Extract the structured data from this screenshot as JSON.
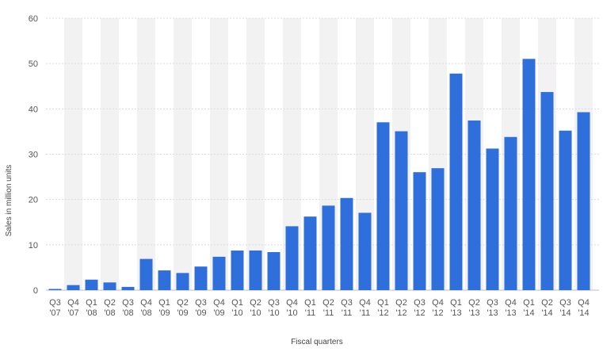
{
  "chart_data": {
    "type": "bar",
    "title": "",
    "xlabel": "Fiscal quarters",
    "ylabel": "Sales in million units",
    "ylim": [
      0,
      60
    ],
    "yticks": [
      0,
      10,
      20,
      30,
      40,
      50,
      60
    ],
    "grid": true,
    "legend": "none",
    "bar_color": "#2f6fdc",
    "band_color": "#f2f2f2",
    "grid_color": "#dcdcdc",
    "categories": [
      {
        "q": "Q3",
        "y": "'07"
      },
      {
        "q": "Q4",
        "y": "'07"
      },
      {
        "q": "Q1",
        "y": "'08"
      },
      {
        "q": "Q2",
        "y": "'08"
      },
      {
        "q": "Q3",
        "y": "'08"
      },
      {
        "q": "Q4",
        "y": "'08"
      },
      {
        "q": "Q1",
        "y": "'09"
      },
      {
        "q": "Q2",
        "y": "'09"
      },
      {
        "q": "Q3",
        "y": "'09"
      },
      {
        "q": "Q4",
        "y": "'09"
      },
      {
        "q": "Q1",
        "y": "'10"
      },
      {
        "q": "Q2",
        "y": "'10"
      },
      {
        "q": "Q3",
        "y": "'10"
      },
      {
        "q": "Q4",
        "y": "'10"
      },
      {
        "q": "Q1",
        "y": "'11"
      },
      {
        "q": "Q2",
        "y": "'11"
      },
      {
        "q": "Q3",
        "y": "'11"
      },
      {
        "q": "Q4",
        "y": "'11"
      },
      {
        "q": "Q1",
        "y": "'12"
      },
      {
        "q": "Q2",
        "y": "'12"
      },
      {
        "q": "Q3",
        "y": "'12"
      },
      {
        "q": "Q4",
        "y": "'12"
      },
      {
        "q": "Q1",
        "y": "'13"
      },
      {
        "q": "Q2",
        "y": "'13"
      },
      {
        "q": "Q3",
        "y": "'13"
      },
      {
        "q": "Q4",
        "y": "'13"
      },
      {
        "q": "Q1",
        "y": "'14"
      },
      {
        "q": "Q2",
        "y": "'14"
      },
      {
        "q": "Q3",
        "y": "'14"
      },
      {
        "q": "Q4",
        "y": "'14"
      }
    ],
    "values": [
      0.27,
      1.12,
      2.32,
      1.7,
      0.72,
      6.89,
      4.36,
      3.79,
      5.21,
      7.37,
      8.74,
      8.75,
      8.4,
      14.1,
      16.24,
      18.65,
      20.34,
      17.07,
      37.04,
      35.06,
      26.03,
      26.91,
      47.79,
      37.43,
      31.24,
      33.8,
      51.03,
      43.72,
      35.2,
      39.27
    ]
  }
}
